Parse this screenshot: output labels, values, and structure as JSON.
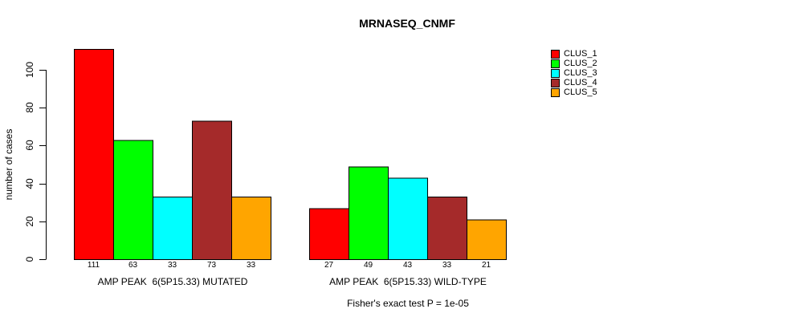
{
  "title": "MRNASEQ_CNMF",
  "chart_data": {
    "type": "bar",
    "title": "MRNASEQ_CNMF",
    "xlabel": "",
    "ylabel": "number of cases",
    "ylim": [
      0,
      111
    ],
    "yticks": [
      0,
      20,
      40,
      60,
      80,
      100
    ],
    "grid": false,
    "legend_position": "right",
    "categories": [
      "AMP PEAK  6(5P15.33) MUTATED",
      "AMP PEAK  6(5P15.33) WILD-TYPE"
    ],
    "series": [
      {
        "name": "CLUS_1",
        "color": "#FF0000",
        "values": [
          111,
          27
        ]
      },
      {
        "name": "CLUS_2",
        "color": "#00FF00",
        "values": [
          63,
          49
        ]
      },
      {
        "name": "CLUS_3",
        "color": "#00FFFF",
        "values": [
          33,
          43
        ]
      },
      {
        "name": "CLUS_4",
        "color": "#A52A2A",
        "values": [
          73,
          33
        ]
      },
      {
        "name": "CLUS_5",
        "color": "#FFA500",
        "values": [
          33,
          21
        ]
      }
    ],
    "bar_value_labels": {
      "group_0": [
        "111",
        "63",
        "33",
        "73",
        "33"
      ],
      "group_1": [
        "27",
        "49",
        "43",
        "33",
        "21"
      ]
    },
    "annotation": "Fisher's exact test P = 1e-05"
  },
  "colors": {
    "axis": "#000000",
    "background": "#FFFFFF",
    "text": "#000000"
  }
}
